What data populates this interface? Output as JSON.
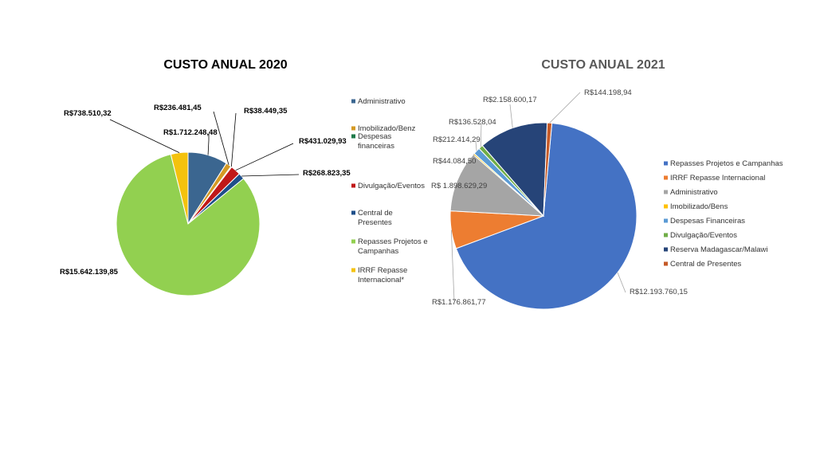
{
  "chart_data": [
    {
      "type": "pie",
      "title": "CUSTO ANUAL 2020",
      "legend_position": "right",
      "slices": [
        {
          "name": "Administrativo",
          "value": 1712248.48,
          "label": "R$1.712.248,48",
          "color": "#3b6690"
        },
        {
          "name": "Imobilizado/Benz",
          "value": 236481.45,
          "label": "R$236.481,45",
          "color": "#d59a24"
        },
        {
          "name": "Despesas financeiras",
          "value": 38449.35,
          "label": "R$38.449,35",
          "color": "#1f7a4a"
        },
        {
          "name": "Divulgação/Eventos",
          "value": 431029.93,
          "label": "R$431.029,93",
          "color": "#c01818"
        },
        {
          "name": "Central de Presentes",
          "value": 268823.35,
          "label": "R$268.823,35",
          "color": "#1f4f8a"
        },
        {
          "name": "Repasses Projetos e Campanhas",
          "value": 15642139.85,
          "label": "R$15.642.139,85",
          "color": "#92d050"
        },
        {
          "name": "IRRF Repasse Internacional*",
          "value": 738510.32,
          "label": "R$738.510,32",
          "color": "#f4c20d"
        }
      ]
    },
    {
      "type": "pie",
      "title": "CUSTO ANUAL 2021",
      "legend_position": "right",
      "slices": [
        {
          "name": "Repasses Projetos e Campanhas",
          "value": 12193760.15,
          "label": "R$12.193.760,15",
          "color": "#4472c4"
        },
        {
          "name": "IRRF Repasse Internacional",
          "value": 1176861.77,
          "label": "R$1.176.861,77",
          "color": "#ed7d31"
        },
        {
          "name": "Administrativo",
          "value": 1898629.29,
          "label": "R$ 1.898.629,29",
          "color": "#a5a5a5"
        },
        {
          "name": "Imobilizado/Bens",
          "value": 44084.5,
          "label": "R$44.084,50",
          "color": "#ffc000"
        },
        {
          "name": "Despesas Financeiras",
          "value": 212414.29,
          "label": "R$212.414,29",
          "color": "#5b9bd5"
        },
        {
          "name": "Divulgação/Eventos",
          "value": 136528.04,
          "label": "R$136.528,04",
          "color": "#70ad47"
        },
        {
          "name": "Reserva Madagascar/Malawi",
          "value": 2158600.17,
          "label": "R$2.158.600,17",
          "color": "#264478"
        },
        {
          "name": "Central de Presentes",
          "value": 144198.94,
          "label": "R$144.198,94",
          "color": "#c55a28"
        }
      ]
    }
  ]
}
